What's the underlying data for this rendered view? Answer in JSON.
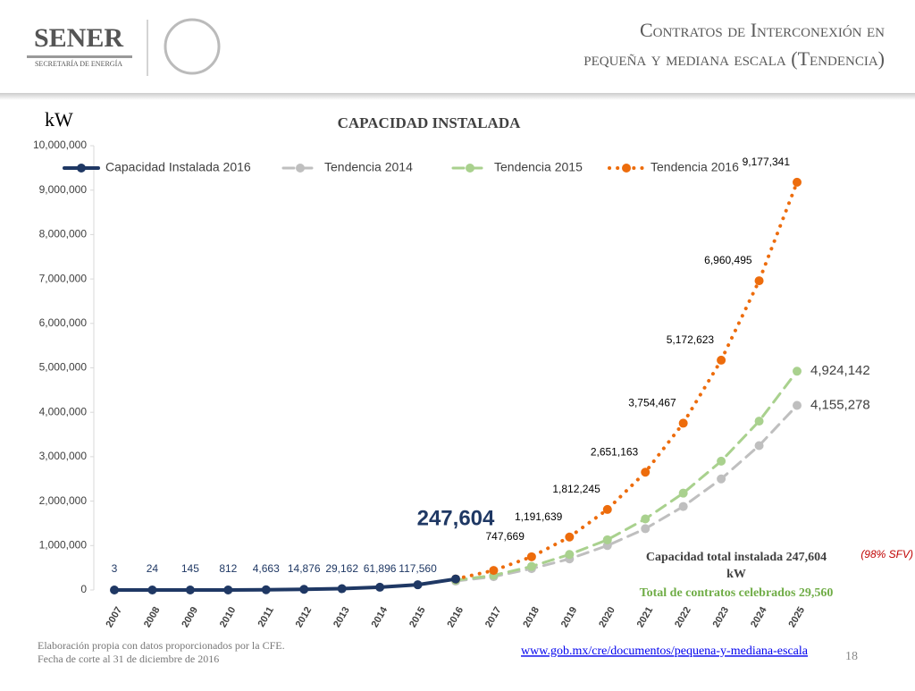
{
  "slide": {
    "logo": "SENER",
    "logo_sub": "SECRETARÍA DE ENERGÍA",
    "title_lines": [
      "Contratos de Interconexión en",
      "pequeña y mediana escala (Tendencia)"
    ],
    "note": "(98% SFV)",
    "summary_1": "Capacidad total instalada 247,604",
    "summary_2": "kW",
    "summary_3": "Total de contratos celebrados 29,560",
    "footer_1": "Elaboración propia con datos proporcionados por la CFE.",
    "footer_2": "Fecha de corte al 31 de diciembre de 2016",
    "url": "www.gob.mx/cre/documentos/pequena-y-mediana-escala",
    "page": "18"
  },
  "chart_data": {
    "type": "line",
    "title": "CAPACIDAD INSTALADA",
    "ylabel": "kW",
    "categories": [
      "2007",
      "2008",
      "2009",
      "2010",
      "2011",
      "2012",
      "2013",
      "2014",
      "2015",
      "2016",
      "2017",
      "2018",
      "2019",
      "2020",
      "2021",
      "2022",
      "2023",
      "2024",
      "2025"
    ],
    "ylim": [
      0,
      10000000
    ],
    "yticks": [
      0,
      {
        "value": 1000000,
        "label": "1,000,000"
      },
      {
        "value": 2000000,
        "label": "2,000,000"
      },
      {
        "value": 3000000,
        "label": "3,000,000"
      },
      {
        "value": 4000000,
        "label": "4,000,000"
      },
      {
        "value": 5000000,
        "label": "5,000,000"
      },
      {
        "value": 6000000,
        "label": "6,000,000"
      },
      {
        "value": 7000000,
        "label": "7,000,000"
      },
      {
        "value": 8000000,
        "label": "8,000,000"
      },
      {
        "value": 9000000,
        "label": "9,000,000"
      },
      {
        "value": 10000000,
        "label": "10,000,000"
      }
    ],
    "series": [
      {
        "name": "Capacidad Instalada 2016",
        "color": "#1f3864",
        "line_style": "solid",
        "values": [
          3,
          24,
          145,
          812,
          4663,
          14876,
          29162,
          61896,
          117560,
          247604,
          null,
          null,
          null,
          null,
          null,
          null,
          null,
          null,
          null
        ],
        "value_labels": [
          "3",
          "24",
          "145",
          "812",
          "4,663",
          "14,876",
          "29,162",
          "61,896",
          "117,560",
          "247,604",
          null,
          null,
          null,
          null,
          null,
          null,
          null,
          null,
          null
        ]
      },
      {
        "name": "Tendencia 2014",
        "color": "#bfbfbf",
        "line_style": "dashed",
        "values": [
          null,
          null,
          null,
          null,
          null,
          null,
          null,
          null,
          null,
          200000,
          300000,
          480000,
          700000,
          1000000,
          1380000,
          1880000,
          2500000,
          3250000,
          4155278
        ],
        "value_labels": [
          null,
          null,
          null,
          null,
          null,
          null,
          null,
          null,
          null,
          null,
          null,
          null,
          null,
          null,
          null,
          null,
          null,
          null,
          "4,155,278"
        ]
      },
      {
        "name": "Tendencia 2015",
        "color": "#a9d18e",
        "line_style": "dashed",
        "values": [
          null,
          null,
          null,
          null,
          null,
          null,
          null,
          null,
          null,
          220000,
          330000,
          530000,
          800000,
          1130000,
          1600000,
          2180000,
          2900000,
          3800000,
          4924142
        ],
        "value_labels": [
          null,
          null,
          null,
          null,
          null,
          null,
          null,
          null,
          null,
          null,
          null,
          null,
          null,
          null,
          null,
          null,
          null,
          null,
          "4,924,142"
        ]
      },
      {
        "name": "Tendencia 2016",
        "color": "#ed6c0c",
        "line_style": "dotted",
        "values": [
          null,
          null,
          null,
          null,
          null,
          null,
          null,
          null,
          null,
          247604,
          440000,
          747669,
          1191639,
          1812245,
          2651163,
          3754467,
          5172623,
          6960495,
          9177341
        ],
        "value_labels": [
          null,
          null,
          null,
          null,
          null,
          null,
          null,
          null,
          null,
          null,
          null,
          "747,669",
          "1,191,639",
          "1,812,245",
          "2,651,163",
          "3,754,467",
          "5,172,623",
          "6,960,495",
          "9,177,341"
        ]
      }
    ]
  }
}
